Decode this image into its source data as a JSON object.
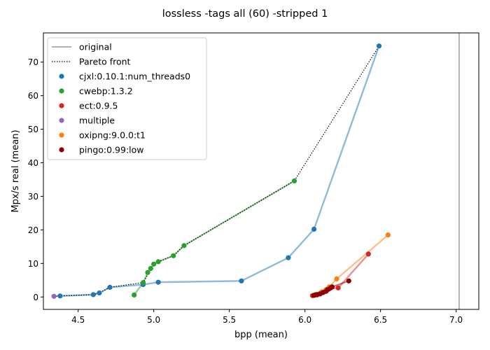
{
  "chart_data": {
    "type": "scatter",
    "title": "lossless -tags all (60) -stripped 1",
    "xlabel": "bpp (mean)",
    "ylabel": "Mpx/s real (mean)",
    "xlim": [
      4.27,
      7.15
    ],
    "ylim": [
      -3.7,
      78.7
    ],
    "xticks": [
      4.5,
      5.0,
      5.5,
      6.0,
      6.5,
      7.0
    ],
    "xtick_labels": [
      "4.5",
      "5.0",
      "5.5",
      "6.0",
      "6.5",
      "7.0"
    ],
    "yticks": [
      0,
      10,
      20,
      30,
      40,
      50,
      60,
      70
    ],
    "ytick_labels": [
      "0",
      "10",
      "20",
      "30",
      "40",
      "50",
      "60",
      "70"
    ],
    "grid": false,
    "legend_position": "upper-left",
    "original": {
      "label": "original",
      "x": 7.02,
      "color": "#808080"
    },
    "pareto": {
      "label": "Pareto front",
      "color": "#000000",
      "points": [
        [
          4.34,
          0.2
        ],
        [
          4.38,
          0.3
        ],
        [
          4.6,
          0.7
        ],
        [
          4.64,
          1.2
        ],
        [
          4.71,
          2.9
        ],
        [
          4.93,
          4.3
        ],
        [
          5.0,
          9.8
        ],
        [
          5.03,
          10.5
        ],
        [
          5.13,
          12.3
        ],
        [
          5.2,
          15.3
        ],
        [
          5.93,
          34.6
        ],
        [
          6.49,
          74.8
        ]
      ]
    },
    "series": [
      {
        "name": "cjxl:0.10.1:num_threads0",
        "color": "#1f77b4",
        "points": [
          [
            4.38,
            0.3
          ],
          [
            4.6,
            0.7
          ],
          [
            4.64,
            1.2
          ],
          [
            4.71,
            2.9
          ],
          [
            4.93,
            3.7
          ],
          [
            5.03,
            4.4
          ],
          [
            5.58,
            4.8
          ],
          [
            5.89,
            11.7
          ],
          [
            6.06,
            20.2
          ],
          [
            6.49,
            74.8
          ]
        ]
      },
      {
        "name": "cwebp:1.3.2",
        "color": "#2ca02c",
        "points": [
          [
            4.87,
            0.6
          ],
          [
            4.93,
            4.3
          ],
          [
            4.96,
            7.3
          ],
          [
            4.98,
            8.5
          ],
          [
            5.0,
            9.8
          ],
          [
            5.03,
            10.5
          ],
          [
            5.13,
            12.3
          ],
          [
            5.2,
            15.3
          ],
          [
            5.93,
            34.6
          ]
        ]
      },
      {
        "name": "ect:0.9.5",
        "color": "#d62728",
        "points": [
          [
            6.05,
            0.4
          ],
          [
            6.07,
            0.7
          ],
          [
            6.1,
            1.0
          ],
          [
            6.13,
            1.6
          ],
          [
            6.16,
            2.4
          ],
          [
            6.22,
            2.7
          ],
          [
            6.42,
            12.8
          ]
        ]
      },
      {
        "name": "multiple",
        "color": "#9467bd",
        "points": [
          [
            4.34,
            0.2
          ]
        ]
      },
      {
        "name": "oxipng:9.0.0:t1",
        "color": "#ff7f0e",
        "points": [
          [
            6.08,
            0.6
          ],
          [
            6.11,
            1.5
          ],
          [
            6.14,
            2.2
          ],
          [
            6.16,
            3.0
          ],
          [
            6.21,
            5.4
          ],
          [
            6.55,
            18.5
          ]
        ]
      },
      {
        "name": "pingo:0.99:low",
        "color": "#8b0000",
        "points": [
          [
            6.06,
            0.5
          ],
          [
            6.08,
            0.7
          ],
          [
            6.1,
            0.9
          ],
          [
            6.12,
            1.3
          ],
          [
            6.14,
            1.7
          ],
          [
            6.15,
            2.2
          ],
          [
            6.17,
            2.7
          ],
          [
            6.18,
            3.0
          ],
          [
            6.29,
            4.8
          ]
        ]
      }
    ]
  }
}
